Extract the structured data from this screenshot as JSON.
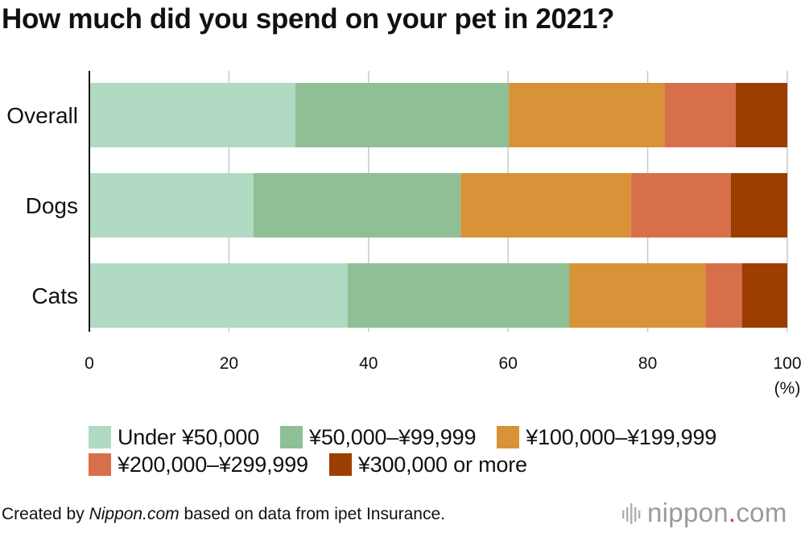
{
  "title": "How much did you spend on your pet in 2021?",
  "chart_data": {
    "type": "bar",
    "orientation": "horizontal",
    "stacked": true,
    "categories": [
      "Overall",
      "Dogs",
      "Cats"
    ],
    "series": [
      {
        "name": "Under ¥50,000",
        "color": "#b1dac2",
        "values": [
          29.5,
          23.5,
          37.0
        ]
      },
      {
        "name": "¥50,000–¥99,999",
        "color": "#8ebf95",
        "values": [
          30.6,
          29.7,
          31.8
        ]
      },
      {
        "name": "¥100,000–¥199,999",
        "color": "#d89237",
        "values": [
          22.3,
          24.4,
          19.5
        ]
      },
      {
        "name": "¥200,000–¥299,999",
        "color": "#d86f4b",
        "values": [
          10.2,
          14.3,
          5.2
        ]
      },
      {
        "name": "¥300,000 or more",
        "color": "#9c3e00",
        "values": [
          7.4,
          8.1,
          6.5
        ]
      }
    ],
    "xlim": [
      0,
      100
    ],
    "xticks": [
      "0",
      "20",
      "40",
      "60",
      "80",
      "100"
    ],
    "xunit": "(%)",
    "grid": true,
    "legend_placement": "bottom"
  },
  "footer": {
    "created_prefix": "Created by ",
    "created_site": "Nippon.com",
    "created_suffix": " based on data from ipet Insurance."
  },
  "brand": {
    "name_part": "nippon",
    "dot": ".",
    "tld": "com",
    "mark_icon": "nippon-logo-bars-icon"
  }
}
